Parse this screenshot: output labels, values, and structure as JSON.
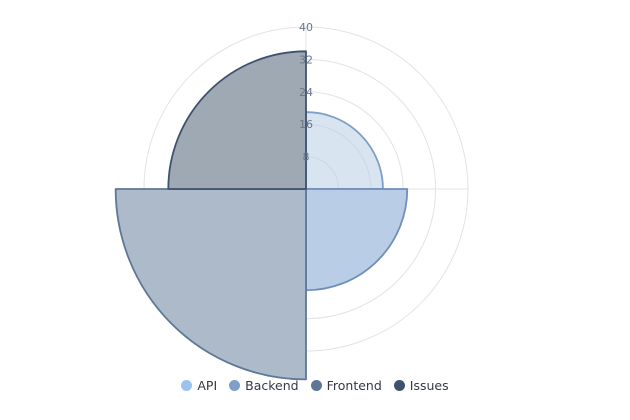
{
  "chart_data": {
    "type": "polar-area",
    "title": "",
    "categories": [
      "API",
      "Backend",
      "Frontend",
      "Issues"
    ],
    "values": [
      19,
      25,
      47,
      34
    ],
    "colors": [
      "#9cc3ee",
      "#7f9fc9",
      "#5e7799",
      "#3e5270"
    ],
    "rlim": [
      0,
      40
    ],
    "r_ticks": [
      "8",
      "16",
      "24",
      "32",
      "40"
    ],
    "grid": true,
    "legend": "bottom"
  }
}
